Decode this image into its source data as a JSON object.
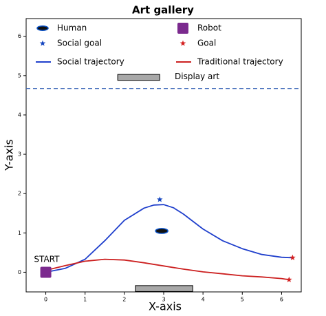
{
  "chart_data": {
    "type": "line",
    "title": "Art gallery",
    "x_label": "X-axis",
    "y_label": "Y-axis",
    "xlim": [
      -0.5,
      6.5
    ],
    "ylim": [
      -0.5,
      6.45
    ],
    "xticks": [
      0,
      1,
      2,
      3,
      4,
      5,
      6
    ],
    "yticks": [
      0,
      1,
      2,
      3,
      4,
      5,
      6
    ],
    "series": [
      {
        "name": "Human",
        "marker": "ellipse",
        "color": "#0a52c8",
        "x": [
          2.95
        ],
        "y": [
          1.05
        ]
      },
      {
        "name": "Robot",
        "marker": "square",
        "color": "#7b2a8e",
        "x": [
          0
        ],
        "y": [
          0
        ]
      },
      {
        "name": "Social goal",
        "marker": "star",
        "color": "#1546c0",
        "x": [
          2.9
        ],
        "y": [
          1.85
        ]
      },
      {
        "name": "Goal",
        "marker": "star",
        "color": "#d42020",
        "x": [
          6.28,
          6.19
        ],
        "y": [
          0.37,
          -0.19
        ]
      },
      {
        "name": "Social trajectory",
        "marker": "line",
        "color": "#1f3fcc",
        "x": [
          0,
          0.5,
          1,
          1.5,
          2,
          2.5,
          2.75,
          3,
          3.25,
          3.5,
          4,
          4.5,
          5,
          5.5,
          6,
          6.25
        ],
        "y": [
          0,
          0.1,
          0.33,
          0.8,
          1.32,
          1.63,
          1.71,
          1.72,
          1.64,
          1.48,
          1.1,
          0.8,
          0.6,
          0.45,
          0.38,
          0.37
        ]
      },
      {
        "name": "Traditional trajectory",
        "marker": "line",
        "color": "#cc2020",
        "x": [
          0,
          0.5,
          1,
          1.5,
          2,
          2.5,
          3,
          3.5,
          4,
          4.5,
          5,
          5.5,
          6,
          6.19
        ],
        "y": [
          0.05,
          0.17,
          0.28,
          0.33,
          0.31,
          0.24,
          0.16,
          0.08,
          0.01,
          -0.04,
          -0.09,
          -0.12,
          -0.16,
          -0.19
        ]
      }
    ],
    "obstacles": [
      {
        "x": [
          1.83,
          2.9
        ],
        "y": [
          4.88,
          5.03
        ],
        "color": "#a8a8a8"
      },
      {
        "x": [
          2.28,
          3.74
        ],
        "y": [
          -0.49,
          -0.34
        ],
        "color": "#a8a8a8"
      }
    ],
    "hlines": [
      {
        "y": 4.67,
        "color": "#3a66b8",
        "style": "dashed"
      }
    ],
    "annotations": [
      {
        "text": "Display art",
        "x": 3.28,
        "y": 4.97
      },
      {
        "text": "START",
        "x": -0.3,
        "y": 0.32
      }
    ]
  }
}
